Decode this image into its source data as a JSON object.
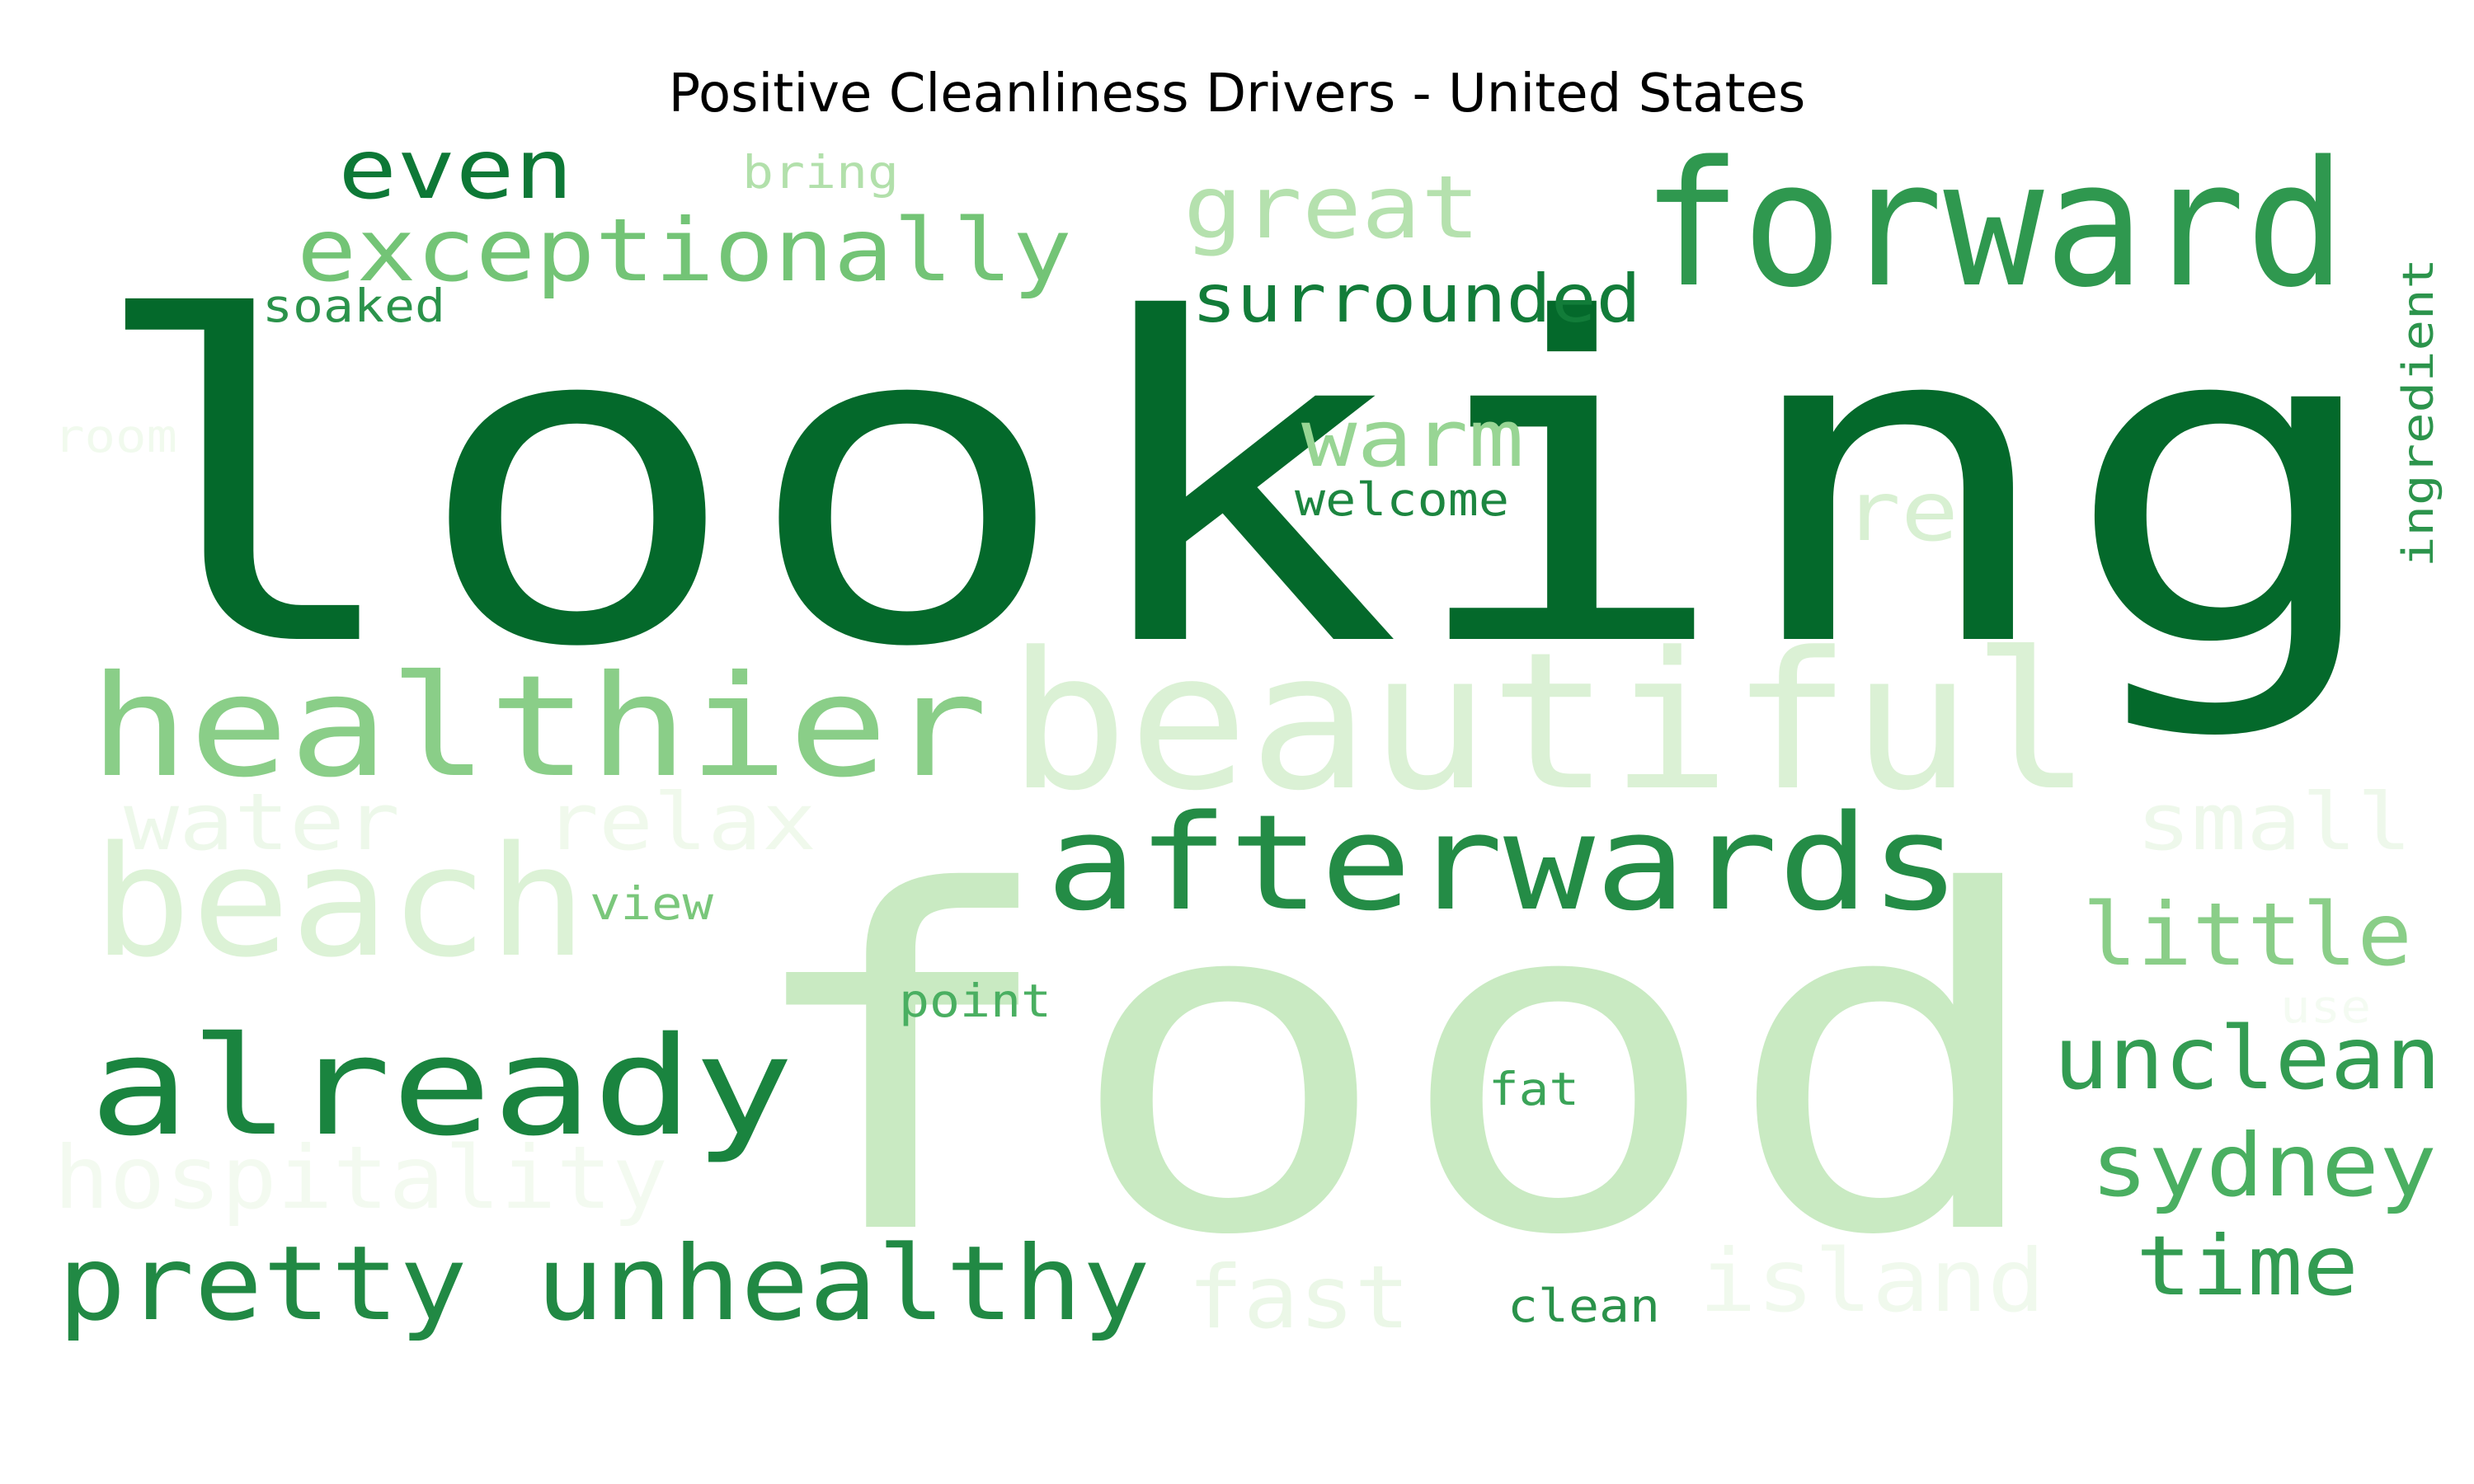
{
  "title": "Positive Cleanliness Drivers - United States",
  "colormap": "Greens",
  "words": [
    {
      "text": "looking",
      "color": "#04692b"
    },
    {
      "text": "food",
      "color": "#c9eac2"
    },
    {
      "text": "beautiful",
      "color": "#dbf1d5"
    },
    {
      "text": "forward",
      "color": "#2f984f"
    },
    {
      "text": "healthier",
      "color": "#8ace88"
    },
    {
      "text": "afterwards",
      "color": "#248c46"
    },
    {
      "text": "beach",
      "color": "#dcf2d6"
    },
    {
      "text": "already",
      "color": "#1a843f"
    },
    {
      "text": "pretty unhealthy",
      "color": "#218944"
    },
    {
      "text": "exceptionally",
      "color": "#73c476"
    },
    {
      "text": "even",
      "color": "#0d7836"
    },
    {
      "text": "great",
      "color": "#b5e1ae"
    },
    {
      "text": "surrounded",
      "color": "#127c39"
    },
    {
      "text": "warm",
      "color": "#98d594"
    },
    {
      "text": "welcome",
      "color": "#1d8640"
    },
    {
      "text": "re",
      "color": "#d8f0d2"
    },
    {
      "text": "bring",
      "color": "#b2e0ab"
    },
    {
      "text": "soaked",
      "color": "#2b934b"
    },
    {
      "text": "room",
      "color": "#f1faee"
    },
    {
      "text": "ingredient",
      "color": "#2c944c"
    },
    {
      "text": "water",
      "color": "#edf8ea"
    },
    {
      "text": "relax",
      "color": "#f0f9ec"
    },
    {
      "text": "small",
      "color": "#eef8eb"
    },
    {
      "text": "view",
      "color": "#7ac77b"
    },
    {
      "text": "little",
      "color": "#8ace88"
    },
    {
      "text": "point",
      "color": "#4aaf61"
    },
    {
      "text": "use",
      "color": "#f4fbf2"
    },
    {
      "text": "unclean",
      "color": "#339c52"
    },
    {
      "text": "fat",
      "color": "#3ba458"
    },
    {
      "text": "sydney",
      "color": "#4aaf61"
    },
    {
      "text": "hospitality",
      "color": "#f3faf0"
    },
    {
      "text": "fast",
      "color": "#ebf7e7"
    },
    {
      "text": "island",
      "color": "#f0f9ed"
    },
    {
      "text": "time",
      "color": "#339c52"
    },
    {
      "text": "clean",
      "color": "#2a924a"
    }
  ]
}
